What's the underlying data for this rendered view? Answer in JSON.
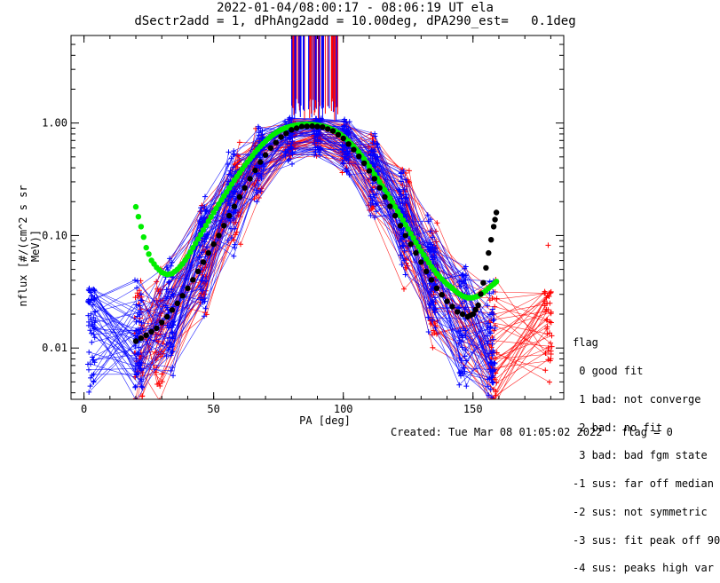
{
  "chart_data": {
    "type": "line",
    "title": "2022-01-04/08:00:17 - 08:06:19 UT ela",
    "subtitle": "dSectr2add = 1, dPhAng2add = 10.00deg, dPA290_est=   0.1deg",
    "xlabel": "PA [deg]",
    "ylabel": "nflux [#/(cm^2 s sr MeV)]",
    "xlim": [
      -5,
      185
    ],
    "ylim": [
      0.0035,
      6.0
    ],
    "yscale": "log",
    "xticks": [
      "0",
      "50",
      "100",
      "150"
    ],
    "yticks": [
      "0.01",
      "0.10",
      "1.00"
    ],
    "series": [
      {
        "color": "#00ee00",
        "x": [
          20,
          22,
          24,
          26,
          28,
          30,
          32,
          34,
          36,
          38,
          40,
          42,
          44,
          46,
          48,
          50,
          52,
          54,
          56,
          58,
          60,
          62,
          64,
          66,
          68,
          70,
          72,
          74,
          76,
          78,
          80,
          82,
          84,
          86,
          88,
          90,
          92,
          94,
          96,
          98,
          100,
          102,
          104,
          106,
          108,
          110,
          112,
          114,
          116,
          118,
          120,
          122,
          124,
          126,
          128,
          130,
          132,
          134,
          136,
          138,
          140,
          142,
          144,
          146,
          148,
          150,
          152,
          154,
          156,
          158,
          159
        ],
        "values": [
          0.18,
          0.12,
          0.078,
          0.06,
          0.052,
          0.047,
          0.045,
          0.046,
          0.05,
          0.056,
          0.065,
          0.078,
          0.093,
          0.112,
          0.134,
          0.16,
          0.19,
          0.225,
          0.265,
          0.31,
          0.36,
          0.42,
          0.48,
          0.55,
          0.62,
          0.69,
          0.76,
          0.82,
          0.87,
          0.91,
          0.94,
          0.96,
          0.97,
          0.975,
          0.97,
          0.96,
          0.94,
          0.91,
          0.87,
          0.82,
          0.76,
          0.69,
          0.62,
          0.55,
          0.48,
          0.41,
          0.35,
          0.3,
          0.255,
          0.215,
          0.18,
          0.15,
          0.125,
          0.104,
          0.087,
          0.073,
          0.062,
          0.053,
          0.046,
          0.041,
          0.037,
          0.034,
          0.031,
          0.029,
          0.028,
          0.028,
          0.029,
          0.031,
          0.034,
          0.037,
          0.039
        ]
      },
      {
        "color": "#000000",
        "x": [
          20,
          24,
          28,
          32,
          36,
          40,
          44,
          48,
          52,
          56,
          60,
          64,
          68,
          72,
          76,
          80,
          84,
          88,
          92,
          96,
          100,
          104,
          108,
          112,
          116,
          120,
          124,
          128,
          132,
          136,
          140,
          144,
          148,
          150,
          152,
          154,
          156,
          158,
          159
        ],
        "values": [
          0.0115,
          0.013,
          0.015,
          0.019,
          0.025,
          0.034,
          0.048,
          0.07,
          0.1,
          0.15,
          0.22,
          0.32,
          0.45,
          0.6,
          0.75,
          0.87,
          0.93,
          0.94,
          0.92,
          0.85,
          0.73,
          0.58,
          0.44,
          0.32,
          0.22,
          0.15,
          0.1,
          0.07,
          0.048,
          0.034,
          0.026,
          0.021,
          0.019,
          0.02,
          0.024,
          0.038,
          0.07,
          0.12,
          0.16
        ]
      }
    ],
    "colors": {
      "red": "#ff0000",
      "blue": "#0000ff"
    },
    "outlier_point": {
      "x": 179,
      "y": 0.082,
      "color": "#ff0000"
    }
  },
  "legend": {
    "title": "flag",
    "entries": [
      " 0 good fit",
      " 1 bad: not converge",
      " 2 bad: no fit",
      " 3 bad: bad fgm state",
      "-1 sus: far off median",
      "-2 sus: not symmetric",
      "-3 sus: fit peak off 90",
      "-4 sus: peaks high var"
    ]
  },
  "footer": "Created: Tue Mar 08 01:05:02 2022   flag = 0"
}
